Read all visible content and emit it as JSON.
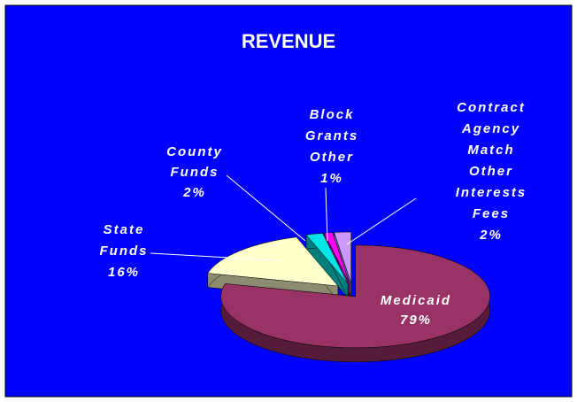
{
  "chart_data": {
    "type": "pie3d",
    "title": "REVENUE",
    "categories": [
      [
        "Medicaid"
      ],
      [
        "State",
        "Funds"
      ],
      [
        "County",
        "Funds"
      ],
      [
        "Block",
        "Grants",
        "Other"
      ],
      [
        "Contract",
        "Agency",
        "Match",
        "Other",
        "Interests",
        "Fees"
      ]
    ],
    "values": [
      79,
      16,
      2,
      1,
      2
    ],
    "value_labels": [
      "79%",
      "16%",
      "2%",
      "1%",
      "2%"
    ],
    "colors": [
      "#993366",
      "#ffffcc",
      "#00e5e5",
      "#ff00ff",
      "#cc99ff"
    ],
    "background": "#0000ff"
  }
}
